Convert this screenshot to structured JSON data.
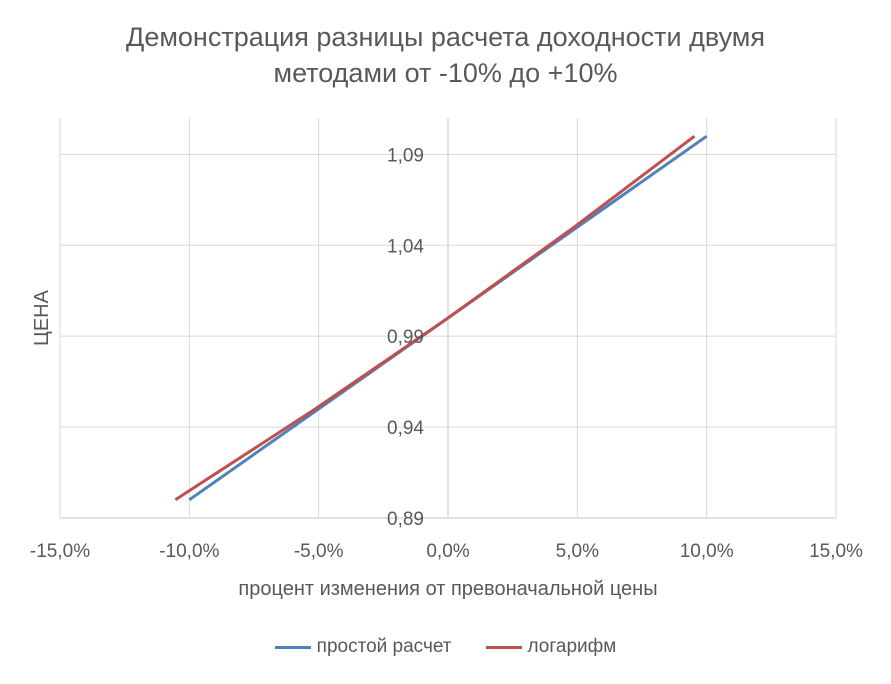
{
  "chart_data": {
    "type": "line",
    "title": "Демонстрация разницы расчета доходности двумя методами от -10% до +10%",
    "title_lines": [
      "Демонстрация разницы расчета доходности двумя",
      "методами от -10% до +10%"
    ],
    "xlabel": "процент изменения от превоначальной цены",
    "ylabel": "ЦЕНА",
    "xlim": [
      -0.15,
      0.15
    ],
    "ylim": [
      0.89,
      1.11
    ],
    "x_ticks": [
      -0.15,
      -0.1,
      -0.05,
      0.0,
      0.05,
      0.1,
      0.15
    ],
    "x_tick_labels": [
      "-15,0%",
      "-10,0%",
      "-5,0%",
      "0,0%",
      "5,0%",
      "10,0%",
      "15,0%"
    ],
    "y_ticks": [
      0.89,
      0.94,
      0.99,
      1.04,
      1.09
    ],
    "y_tick_labels": [
      "0,89",
      "0,94",
      "0,99",
      "1,04",
      "1,09"
    ],
    "grid": true,
    "legend_position": "bottom",
    "series": [
      {
        "name": "простой расчет",
        "color": "#4f81bd",
        "x": [
          -0.1,
          -0.05,
          0.0,
          0.05,
          0.1
        ],
        "y": [
          0.9,
          0.95,
          1.0,
          1.05,
          1.1
        ]
      },
      {
        "name": "логарифм",
        "color": "#c0504d",
        "x": [
          -0.1054,
          -0.0513,
          0.0,
          0.0488,
          0.0953
        ],
        "y": [
          0.9,
          0.95,
          1.0,
          1.05,
          1.1
        ]
      }
    ],
    "gridline_color": "#d9d9d9"
  }
}
